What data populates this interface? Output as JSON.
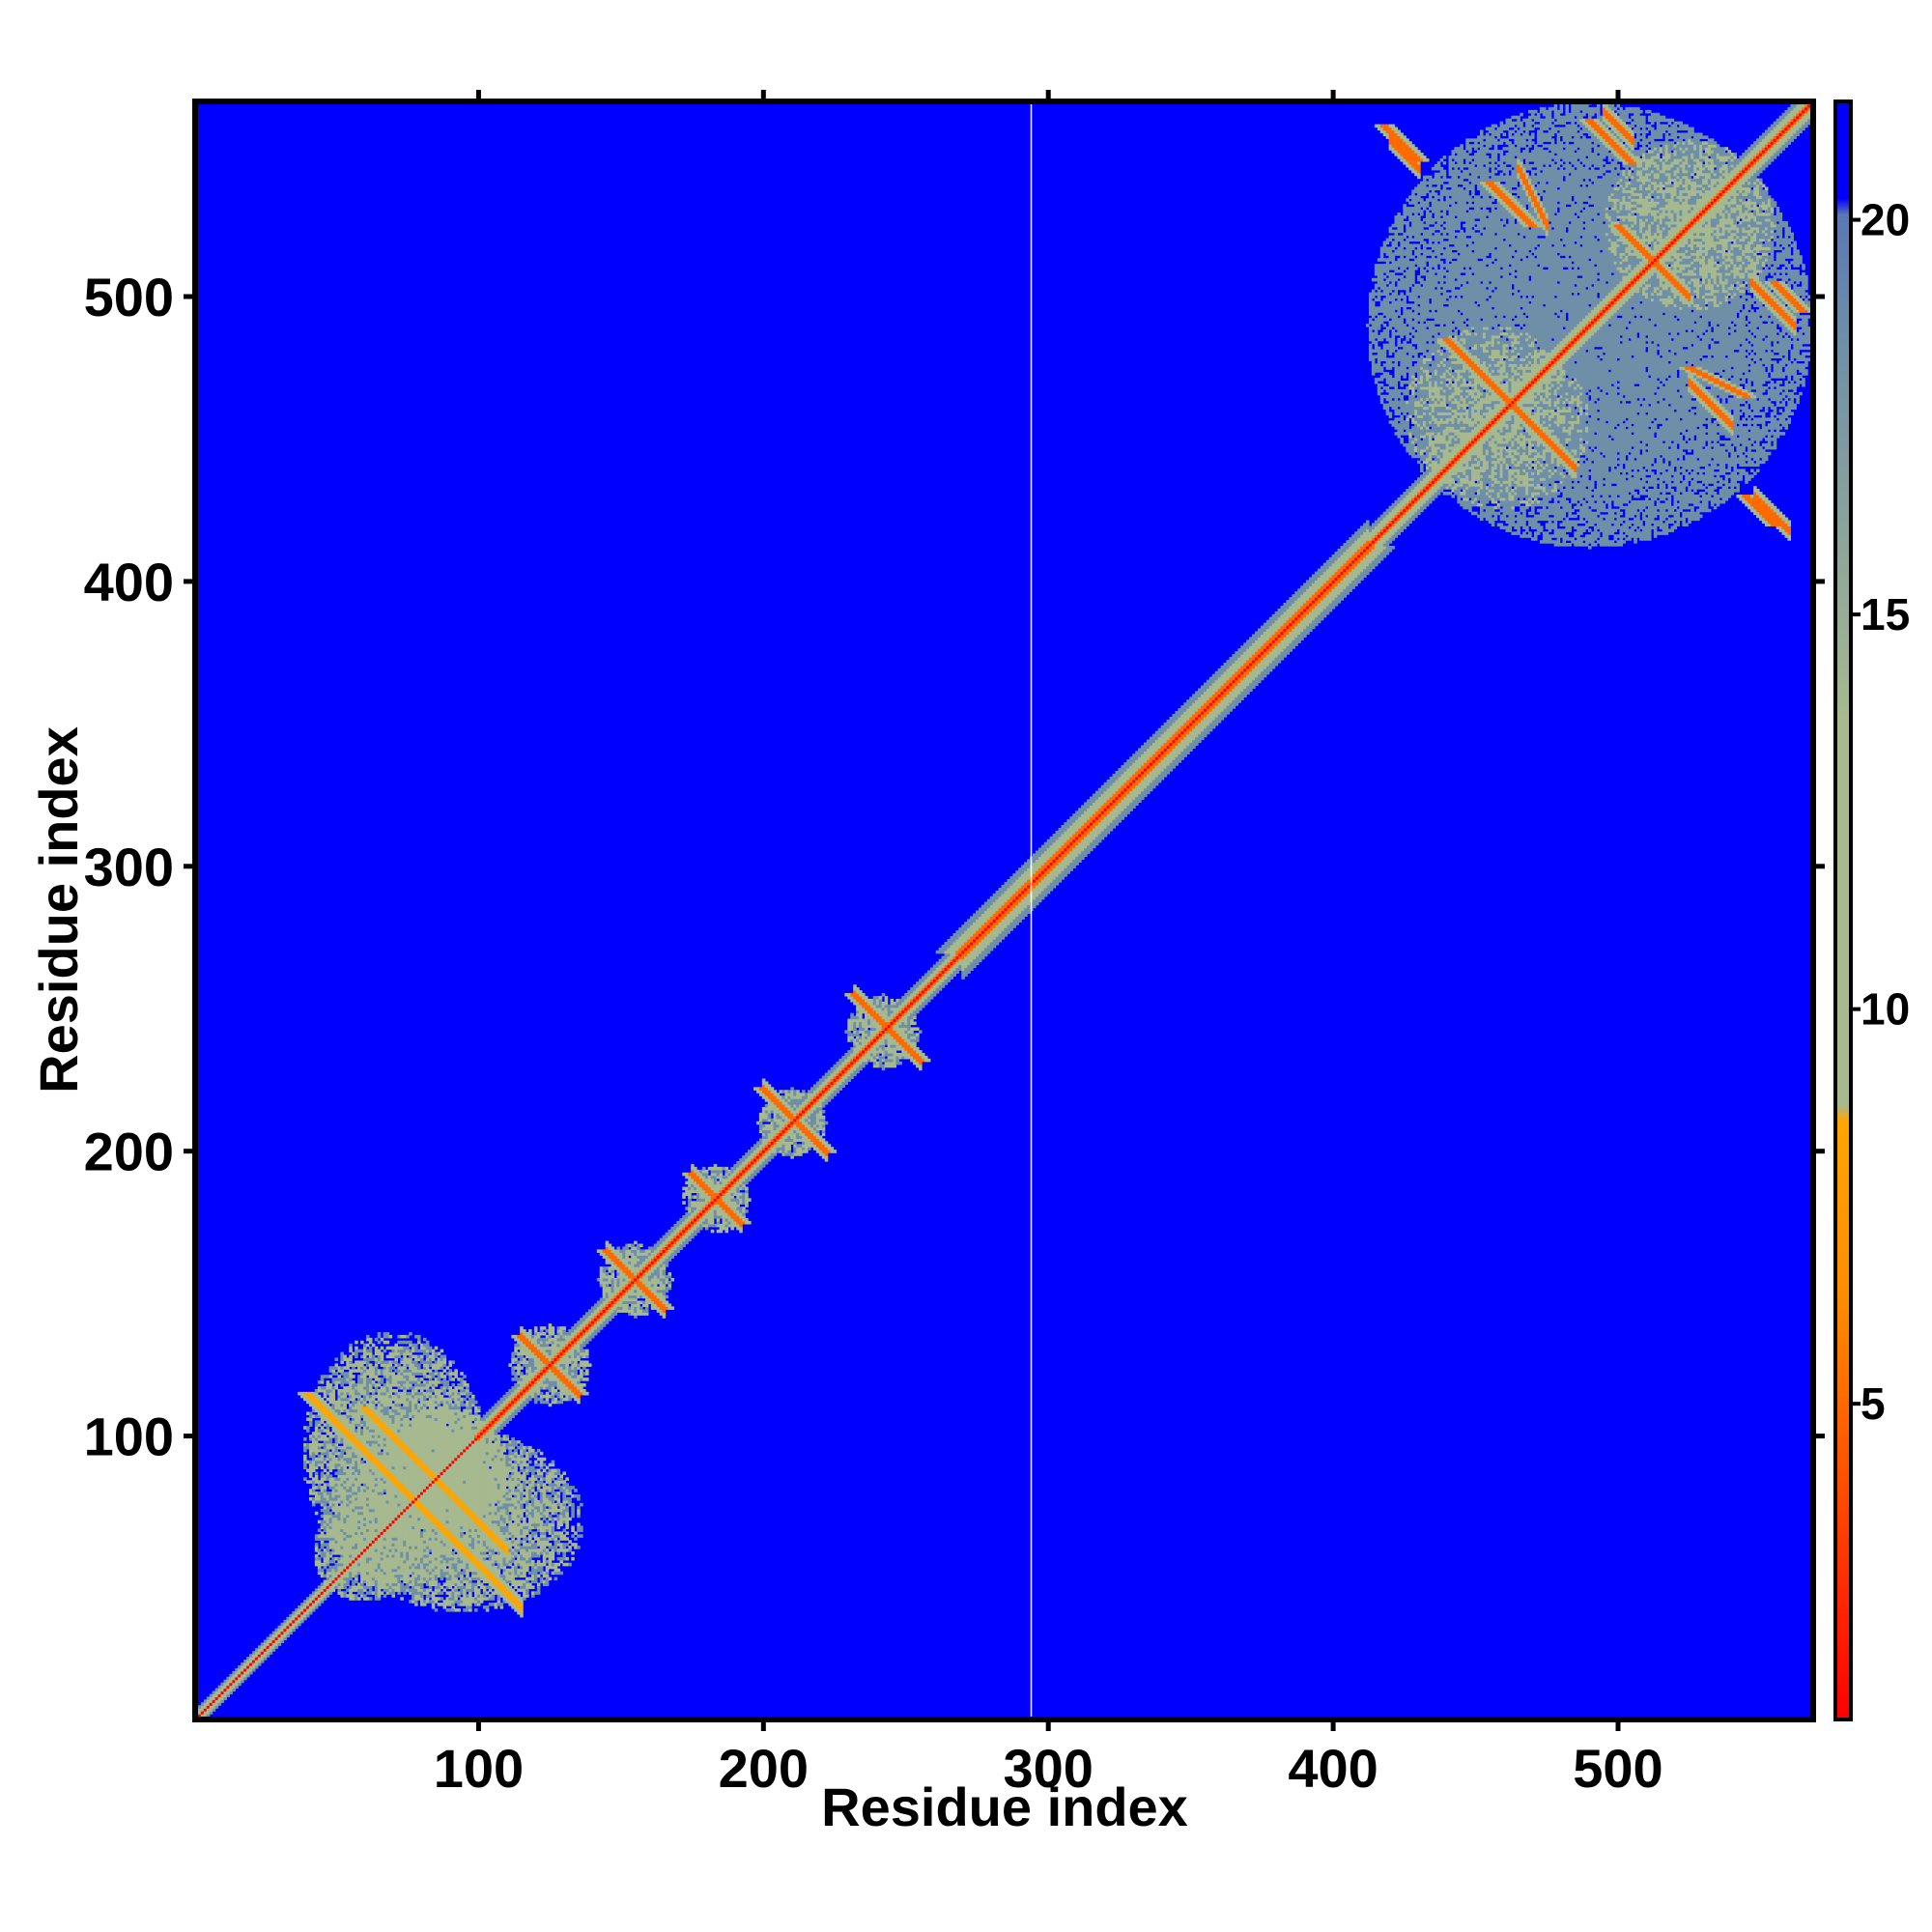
{
  "chart_data": {
    "type": "heatmap",
    "subtype": "residue distance map",
    "xlabel": "Residue index",
    "ylabel": "Residue index",
    "xlim": [
      1,
      568
    ],
    "ylim": [
      1,
      568
    ],
    "x_ticks": [
      100,
      200,
      300,
      400,
      500
    ],
    "y_ticks": [
      100,
      200,
      300,
      400,
      500
    ],
    "x_tick_labels": [
      "100",
      "200",
      "300",
      "400",
      "500"
    ],
    "y_tick_labels": [
      "100",
      "200",
      "300",
      "400",
      "500"
    ],
    "colorbar": {
      "range": [
        1,
        21.5
      ],
      "ticks": [
        5,
        10,
        15,
        20
      ],
      "tick_labels": [
        "5",
        "10",
        "15",
        "20"
      ],
      "colors": {
        "close": "#ff0000",
        "mid_close": "#ff6a00",
        "mid": "#ffa500",
        "far_near": "#a6b98f",
        "far": "#6f8fa8",
        "background": "#0000ff"
      }
    },
    "background_value": 21.5,
    "diagonal": {
      "value": 1
    },
    "band_segments": [
      {
        "start": 1,
        "end": 100,
        "half_width": 3,
        "value": 12
      },
      {
        "start": 100,
        "end": 270,
        "half_width": 5,
        "value": 12
      },
      {
        "start": 270,
        "end": 412,
        "half_width": 9,
        "value": 12
      },
      {
        "start": 412,
        "end": 568,
        "half_width": 6,
        "value": 12
      }
    ],
    "contact_clusters": [
      {
        "x": 72,
        "y": 90,
        "rx": 32,
        "ry": 42,
        "value": 14
      },
      {
        "x": 95,
        "y": 70,
        "rx": 42,
        "ry": 32,
        "value": 14
      },
      {
        "x": 88,
        "y": 88,
        "rx": 22,
        "ry": 22,
        "value": 12
      },
      {
        "x": 60,
        "y": 60,
        "rx": 18,
        "ry": 18,
        "value": 13
      },
      {
        "x": 125,
        "y": 125,
        "rx": 14,
        "ry": 14,
        "value": 13
      },
      {
        "x": 155,
        "y": 155,
        "rx": 13,
        "ry": 13,
        "value": 13
      },
      {
        "x": 183,
        "y": 183,
        "rx": 12,
        "ry": 12,
        "value": 13
      },
      {
        "x": 210,
        "y": 210,
        "rx": 12,
        "ry": 12,
        "value": 13
      },
      {
        "x": 242,
        "y": 242,
        "rx": 13,
        "ry": 13,
        "value": 13
      },
      {
        "x": 490,
        "y": 490,
        "rx": 78,
        "ry": 78,
        "value": 16
      },
      {
        "x": 455,
        "y": 460,
        "rx": 30,
        "ry": 30,
        "value": 14
      },
      {
        "x": 525,
        "y": 525,
        "rx": 30,
        "ry": 30,
        "value": 14
      }
    ],
    "cross_lines": [
      {
        "x0": 40,
        "y0": 115,
        "x1": 110,
        "y1": 45,
        "value": 6
      },
      {
        "x0": 60,
        "y0": 110,
        "x1": 100,
        "y1": 70,
        "value": 6
      },
      {
        "x0": 115,
        "y0": 135,
        "x1": 135,
        "y1": 115,
        "value": 5
      },
      {
        "x0": 145,
        "y0": 165,
        "x1": 165,
        "y1": 145,
        "value": 5
      },
      {
        "x0": 175,
        "y0": 192,
        "x1": 192,
        "y1": 175,
        "value": 5
      },
      {
        "x0": 200,
        "y0": 222,
        "x1": 222,
        "y1": 200,
        "value": 5
      },
      {
        "x0": 232,
        "y0": 255,
        "x1": 255,
        "y1": 232,
        "value": 5
      },
      {
        "x0": 418,
        "y0": 560,
        "x1": 430,
        "y1": 548,
        "value": 5
      },
      {
        "x0": 490,
        "y0": 562,
        "x1": 505,
        "y1": 547,
        "value": 5
      },
      {
        "x0": 455,
        "y0": 540,
        "x1": 470,
        "y1": 525,
        "value": 5
      },
      {
        "x0": 440,
        "y0": 485,
        "x1": 480,
        "y1": 445,
        "value": 5
      },
      {
        "x0": 500,
        "y0": 525,
        "x1": 520,
        "y1": 505,
        "value": 5
      },
      {
        "x0": 555,
        "y0": 505,
        "x1": 565,
        "y1": 495,
        "value": 5
      },
      {
        "x0": 545,
        "y0": 430,
        "x1": 555,
        "y1": 420,
        "value": 5
      },
      {
        "x0": 525,
        "y0": 475,
        "x1": 545,
        "y1": 465,
        "value": 5
      }
    ],
    "gap_line_x": 294
  }
}
